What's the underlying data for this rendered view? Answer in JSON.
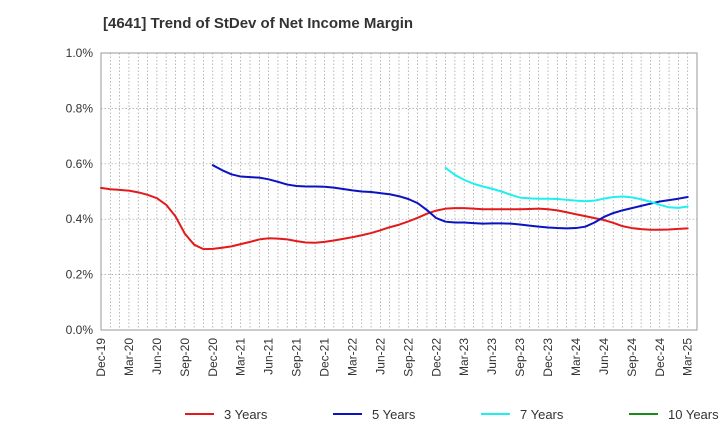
{
  "chart_data": {
    "type": "line",
    "title": "[4641]  Trend of StDev of Net Income Margin",
    "xlabel": "",
    "ylabel": "",
    "ylim": [
      0,
      1.0
    ],
    "y_ticks": [
      "0.0%",
      "0.2%",
      "0.4%",
      "0.6%",
      "0.8%",
      "1.0%"
    ],
    "y_tick_values": [
      0,
      0.2,
      0.4,
      0.6,
      0.8,
      1.0
    ],
    "grid": true,
    "legend_position": "bottom",
    "x_ticks": [
      "Dec-19",
      "Mar-20",
      "Jun-20",
      "Sep-20",
      "Dec-20",
      "Mar-21",
      "Jun-21",
      "Sep-21",
      "Dec-21",
      "Mar-22",
      "Jun-22",
      "Sep-22",
      "Dec-22",
      "Mar-23",
      "Jun-23",
      "Sep-23",
      "Dec-23",
      "Mar-24",
      "Jun-24",
      "Sep-24",
      "Dec-24",
      "Mar-25"
    ],
    "x_months_total": 64,
    "series": [
      {
        "name": "3 Years",
        "color": "#e31a1c",
        "start_month": 0,
        "values": [
          0.513,
          0.508,
          0.506,
          0.503,
          0.497,
          0.488,
          0.476,
          0.452,
          0.41,
          0.348,
          0.308,
          0.292,
          0.293,
          0.297,
          0.302,
          0.31,
          0.318,
          0.327,
          0.331,
          0.33,
          0.327,
          0.321,
          0.316,
          0.315,
          0.318,
          0.323,
          0.329,
          0.335,
          0.342,
          0.35,
          0.36,
          0.371,
          0.38,
          0.392,
          0.405,
          0.42,
          0.431,
          0.438,
          0.44,
          0.44,
          0.438,
          0.436,
          0.436,
          0.436,
          0.436,
          0.436,
          0.437,
          0.438,
          0.436,
          0.432,
          0.425,
          0.418,
          0.411,
          0.404,
          0.397,
          0.387,
          0.375,
          0.368,
          0.364,
          0.362,
          0.362,
          0.363,
          0.365,
          0.367
        ]
      },
      {
        "name": "5 Years",
        "color": "#0a13c2",
        "start_month": 12,
        "values": [
          0.595,
          0.577,
          0.562,
          0.554,
          0.552,
          0.55,
          0.544,
          0.535,
          0.525,
          0.52,
          0.518,
          0.518,
          0.517,
          0.514,
          0.509,
          0.504,
          0.5,
          0.498,
          0.494,
          0.49,
          0.483,
          0.473,
          0.458,
          0.433,
          0.404,
          0.391,
          0.388,
          0.388,
          0.386,
          0.384,
          0.385,
          0.385,
          0.384,
          0.381,
          0.377,
          0.373,
          0.37,
          0.368,
          0.367,
          0.368,
          0.373,
          0.388,
          0.408,
          0.422,
          0.432,
          0.44,
          0.448,
          0.456,
          0.464,
          0.469,
          0.474,
          0.48
        ]
      },
      {
        "name": "7 Years",
        "color": "#1ef0f0",
        "start_month": 37,
        "values": [
          0.585,
          0.56,
          0.542,
          0.528,
          0.518,
          0.51,
          0.5,
          0.488,
          0.478,
          0.475,
          0.474,
          0.474,
          0.473,
          0.47,
          0.467,
          0.465,
          0.467,
          0.474,
          0.48,
          0.482,
          0.479,
          0.472,
          0.463,
          0.452,
          0.443,
          0.441,
          0.446
        ]
      },
      {
        "name": "10 Years",
        "color": "#1a8a1a",
        "start_month": 0,
        "values": []
      }
    ]
  }
}
